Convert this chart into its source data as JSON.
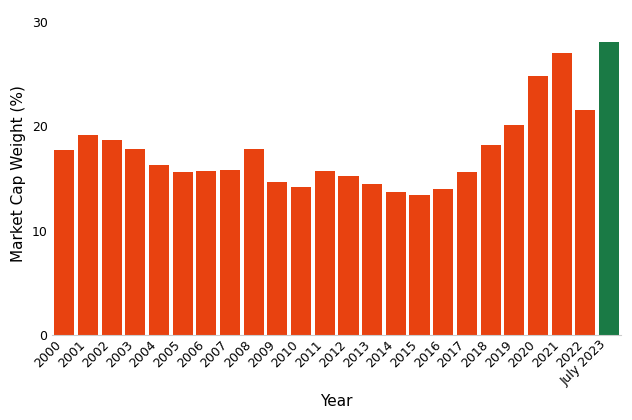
{
  "categories": [
    "2000",
    "2001",
    "2002",
    "2003",
    "2004",
    "2005",
    "2006",
    "2007",
    "2008",
    "2009",
    "2010",
    "2011",
    "2012",
    "2013",
    "2014",
    "2015",
    "2016",
    "2017",
    "2018",
    "2019",
    "2020",
    "2021",
    "2022",
    "July 2023"
  ],
  "values": [
    17.7,
    19.2,
    18.7,
    17.8,
    16.3,
    15.6,
    15.7,
    15.8,
    17.8,
    14.7,
    14.2,
    15.7,
    15.2,
    14.5,
    13.7,
    13.4,
    14.0,
    15.6,
    18.2,
    20.1,
    24.8,
    27.0,
    21.5,
    28.0
  ],
  "bar_colors": [
    "#E84210",
    "#E84210",
    "#E84210",
    "#E84210",
    "#E84210",
    "#E84210",
    "#E84210",
    "#E84210",
    "#E84210",
    "#E84210",
    "#E84210",
    "#E84210",
    "#E84210",
    "#E84210",
    "#E84210",
    "#E84210",
    "#E84210",
    "#E84210",
    "#E84210",
    "#E84210",
    "#E84210",
    "#E84210",
    "#E84210",
    "#1A7A45"
  ],
  "ylabel": "Market Cap Weight (%)",
  "xlabel": "Year",
  "yticks": [
    0,
    10,
    20,
    30
  ],
  "ylim": [
    0,
    31
  ],
  "background_color": "#FFFFFF",
  "tick_label_fontsize": 9,
  "axis_label_fontsize": 11,
  "bar_width": 0.85
}
